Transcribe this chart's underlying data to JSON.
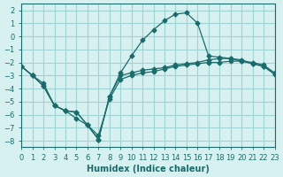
{
  "title": "",
  "xlabel": "Humidex (Indice chaleur)",
  "ylabel": "",
  "background_color": "#d7f0f0",
  "grid_color": "#a0d4d4",
  "line_color": "#1a6b6b",
  "x_ticks": [
    0,
    1,
    2,
    3,
    4,
    5,
    6,
    7,
    8,
    9,
    10,
    11,
    12,
    13,
    14,
    15,
    16,
    17,
    18,
    19,
    20,
    21,
    22,
    23
  ],
  "y_ticks": [
    -8,
    -7,
    -6,
    -5,
    -4,
    -3,
    -2,
    -1,
    0,
    1,
    2
  ],
  "xlim": [
    0,
    23
  ],
  "ylim": [
    -8.5,
    2.5
  ],
  "series": [
    {
      "x": [
        0,
        1,
        2,
        3,
        4,
        5,
        6,
        7,
        8,
        9,
        10,
        11,
        12,
        13,
        14,
        15,
        16,
        17,
        18,
        19,
        20,
        21,
        22,
        23
      ],
      "y": [
        -2.3,
        -3.0,
        -3.6,
        -5.3,
        -5.7,
        -6.3,
        -6.8,
        -7.6,
        -4.8,
        -3.3,
        -3.0,
        -2.8,
        -2.7,
        -2.5,
        -2.3,
        -2.2,
        -2.1,
        -2.0,
        -2.0,
        -1.9,
        -1.9,
        -2.0,
        -2.2,
        -2.8
      ]
    },
    {
      "x": [
        0,
        1,
        2,
        3,
        4,
        5,
        6,
        7,
        8,
        9,
        10,
        11,
        12,
        13,
        14,
        15,
        16,
        17,
        18,
        19,
        20,
        21,
        22,
        23
      ],
      "y": [
        -2.3,
        -3.0,
        -3.8,
        -5.3,
        -5.7,
        -5.8,
        -6.8,
        -7.9,
        -4.6,
        -3.0,
        -2.8,
        -2.6,
        -2.5,
        -2.4,
        -2.2,
        -2.1,
        -2.0,
        -1.8,
        -1.7,
        -1.7,
        -1.8,
        -2.1,
        -2.3,
        -2.9
      ]
    },
    {
      "x": [
        0,
        1,
        2,
        3,
        4,
        5,
        6,
        7,
        8,
        9,
        10,
        11,
        12,
        13,
        14,
        15,
        16,
        17,
        18,
        19,
        20,
        21,
        22,
        23
      ],
      "y": [
        -2.3,
        -3.0,
        -3.8,
        -5.3,
        -5.7,
        -5.8,
        -6.8,
        -7.9,
        -4.6,
        -2.8,
        -1.5,
        -0.3,
        0.5,
        1.2,
        1.7,
        1.8,
        1.0,
        -1.5,
        -1.6,
        -1.7,
        -1.9,
        -2.1,
        -2.3,
        -2.9
      ]
    }
  ]
}
